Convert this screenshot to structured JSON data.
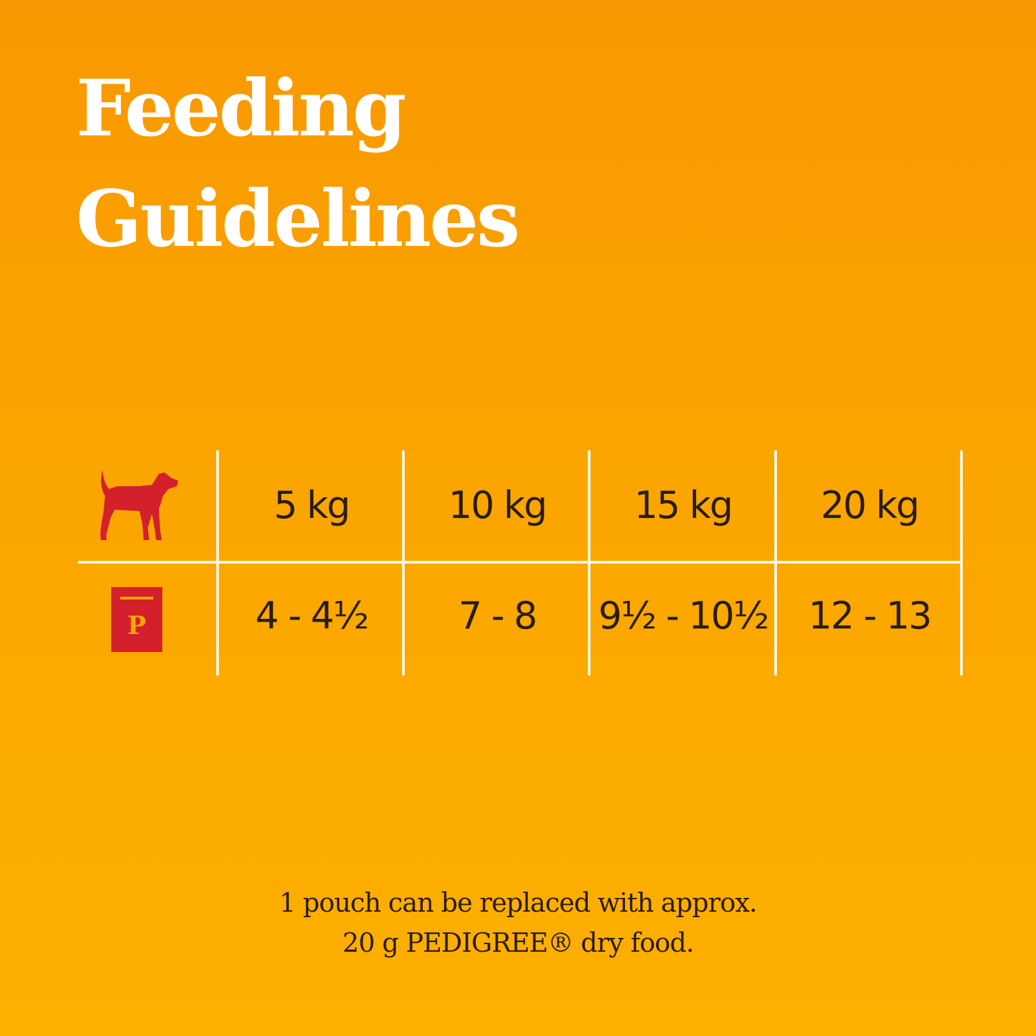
{
  "title_lines": [
    "Feeding",
    "Guidelines"
  ],
  "table": {
    "row_icons": [
      "dog-icon",
      "pouch-icon"
    ],
    "weights": [
      "5 kg",
      "10 kg",
      "15 kg",
      "20 kg"
    ],
    "pouches": [
      "4 - 4½",
      "7 - 8",
      "9½ - 10½",
      "12 - 13"
    ],
    "pouch_icon_letter": "P"
  },
  "note_lines": [
    "1 pouch can be replaced with approx.",
    "20 g PEDIGREE® dry food."
  ],
  "colors": {
    "background_top": "#f89800",
    "background_bottom": "#fdb000",
    "icon_red": "#d4202a",
    "text": "#2a1d08",
    "lines": "#fff6dc"
  }
}
